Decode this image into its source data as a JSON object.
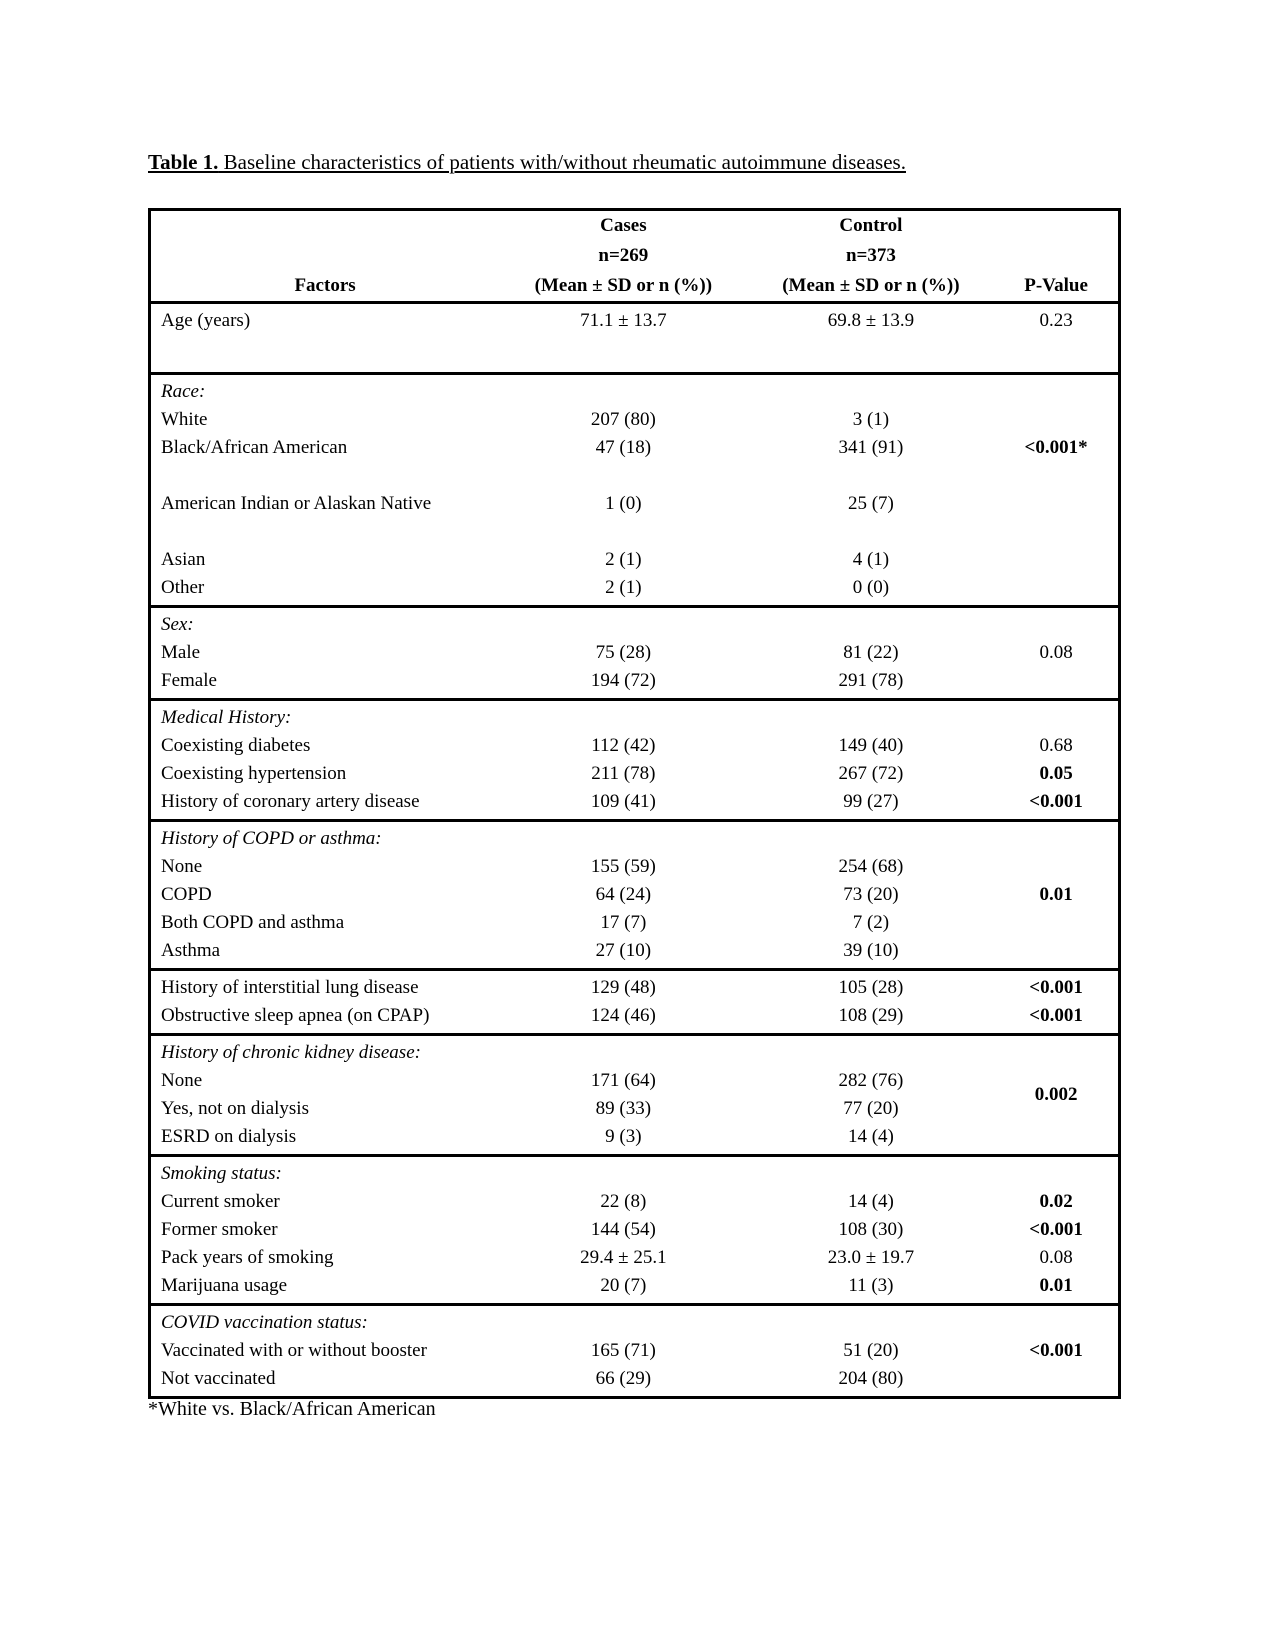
{
  "caption": {
    "label": "Table 1.",
    "text": " Baseline characteristics of patients with/without rheumatic autoimmune diseases."
  },
  "footnote": "*White vs. Black/African American",
  "table": {
    "header": {
      "factors": "Factors",
      "cases": {
        "name": "Cases",
        "n": "n=269",
        "stat": "(Mean ± SD or n (%))"
      },
      "control": {
        "name": "Control",
        "n": "n=373",
        "stat": "(Mean ± SD or n (%))"
      },
      "pvalue": "P-Value"
    },
    "sections": [
      {
        "gap_after": true,
        "rows": [
          {
            "label": "Age (years)",
            "cases": "71.1 ± 13.7",
            "control": "69.8 ± 13.9",
            "pvalue": "0.23"
          }
        ]
      },
      {
        "header": "Race:",
        "rows": [
          {
            "label": "White",
            "cases": "207 (80)",
            "control": "3 (1)"
          },
          {
            "label": "Black/African American",
            "cases": "47 (18)",
            "control": "341 (91)",
            "pvalue": "<0.001*",
            "pvalue_bold": true
          },
          {
            "label": "American Indian or Alaskan Native",
            "cases": "1 (0)",
            "control": "25 (7)",
            "gap_before": true
          },
          {
            "label": "Asian",
            "cases": "2 (1)",
            "control": "4 (1)",
            "gap_before": true
          },
          {
            "label": "Other",
            "cases": "2 (1)",
            "control": "0 (0)"
          }
        ]
      },
      {
        "header": "Sex:",
        "rows": [
          {
            "label": "Male",
            "cases": "75 (28)",
            "control": "81 (22)",
            "pvalue": "0.08"
          },
          {
            "label": "Female",
            "cases": "194 (72)",
            "control": "291 (78)"
          }
        ]
      },
      {
        "header": "Medical History:",
        "rows": [
          {
            "label": "Coexisting diabetes",
            "cases": "112 (42)",
            "control": "149 (40)",
            "pvalue": "0.68"
          },
          {
            "label": "Coexisting hypertension",
            "cases": "211 (78)",
            "control": "267 (72)",
            "pvalue": "0.05",
            "pvalue_bold": true
          },
          {
            "label": "History of coronary artery disease",
            "cases": "109 (41)",
            "control": "99 (27)",
            "pvalue": "<0.001",
            "pvalue_bold": true
          }
        ]
      },
      {
        "header": "History of COPD or asthma:",
        "rows": [
          {
            "label": "None",
            "cases": "155 (59)",
            "control": "254 (68)"
          },
          {
            "label": "COPD",
            "cases": "64 (24)",
            "control": "73 (20)",
            "pvalue": "0.01",
            "pvalue_bold": true
          },
          {
            "label": "Both COPD and asthma",
            "cases": "17 (7)",
            "control": "7 (2)"
          },
          {
            "label": "Asthma",
            "cases": "27 (10)",
            "control": "39 (10)"
          }
        ]
      },
      {
        "rows": [
          {
            "label": "History of interstitial lung disease",
            "cases": "129 (48)",
            "control": "105 (28)",
            "pvalue": "<0.001",
            "pvalue_bold": true
          },
          {
            "label": "Obstructive sleep apnea (on CPAP)",
            "cases": "124 (46)",
            "control": "108 (29)",
            "pvalue": "<0.001",
            "pvalue_bold": true
          }
        ]
      },
      {
        "header": "History of chronic kidney disease:",
        "pvalue_span": {
          "text": "0.002",
          "bold": true
        },
        "rows": [
          {
            "label": "None",
            "cases": "171 (64)",
            "control": "282 (76)"
          },
          {
            "label": "Yes, not on dialysis",
            "cases": "89 (33)",
            "control": "77 (20)"
          },
          {
            "label": "ESRD on dialysis",
            "cases": "9 (3)",
            "control": "14 (4)"
          }
        ]
      },
      {
        "header": "Smoking status:",
        "rows": [
          {
            "label": "Current smoker",
            "cases": "22 (8)",
            "control": "14 (4)",
            "pvalue": "0.02",
            "pvalue_bold": true
          },
          {
            "label": "Former smoker",
            "cases": "144 (54)",
            "control": "108 (30)",
            "pvalue": "<0.001",
            "pvalue_bold": true
          },
          {
            "label": "Pack years of smoking",
            "cases": "29.4 ± 25.1",
            "control": "23.0 ± 19.7",
            "pvalue": "0.08"
          },
          {
            "label": "Marijuana usage",
            "cases": "20 (7)",
            "control": "11 (3)",
            "pvalue": "0.01",
            "pvalue_bold": true
          }
        ]
      },
      {
        "header": "COVID vaccination status:",
        "rows": [
          {
            "label": "Vaccinated with or without booster",
            "cases": "165 (71)",
            "control": "51 (20)",
            "pvalue": "<0.001",
            "pvalue_bold": true
          },
          {
            "label": "Not vaccinated",
            "cases": "66 (29)",
            "control": "204 (80)"
          }
        ]
      }
    ]
  }
}
